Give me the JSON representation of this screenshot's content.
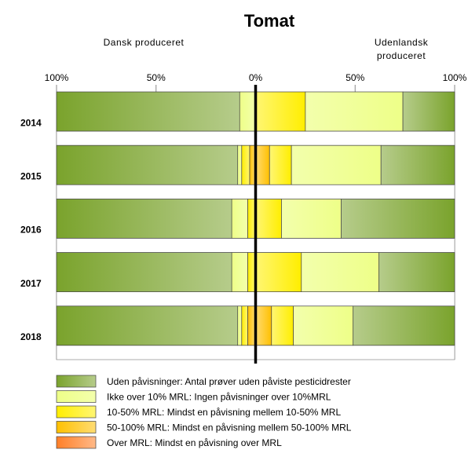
{
  "chart_data": {
    "type": "diverging-bar",
    "title": "Tomat",
    "left_label": "Dansk produceret",
    "right_label": "Udenlandsk produceret",
    "categories": [
      "2014",
      "2015",
      "2016",
      "2017",
      "2018"
    ],
    "xlim": [
      -100,
      100
    ],
    "xticks": [
      {
        "value": -100,
        "label": "100%"
      },
      {
        "value": -50,
        "label": "50%"
      },
      {
        "value": 0,
        "label": "0%"
      },
      {
        "value": 50,
        "label": "50%"
      },
      {
        "value": 100,
        "label": "100%"
      }
    ],
    "grid": true,
    "series": [
      {
        "name": "Uden påvisninger: Antal prøver uden påviste pesticidrester",
        "color": "#7aa32c",
        "left": [
          92,
          91,
          88,
          88,
          91
        ],
        "right": [
          26,
          37,
          57,
          38,
          51
        ]
      },
      {
        "name": "Ikke over 10% MRL: Ingen påvisninger over 10%MRL",
        "color": "#eeff88",
        "left": [
          8,
          2,
          8,
          8,
          2
        ],
        "right": [
          49,
          45,
          30,
          39,
          30
        ]
      },
      {
        "name": "10-50% MRL: Mindst en påvisning mellem 10-50% MRL",
        "color": "#ffee00",
        "left": [
          0,
          4,
          4,
          4,
          3
        ],
        "right": [
          25,
          11,
          13,
          23,
          11
        ]
      },
      {
        "name": "50-100% MRL: Mindst en påvisning mellem 50-100% MRL",
        "color": "#ffc000",
        "left": [
          0,
          3,
          0,
          0,
          4
        ],
        "right": [
          0,
          7,
          0,
          0,
          8
        ]
      },
      {
        "name": "Over MRL:  Mindst en påvisning over MRL",
        "color": "#ff7f27",
        "left": [
          0,
          0,
          0,
          0,
          0
        ],
        "right": [
          0,
          0,
          0,
          0,
          0
        ]
      }
    ]
  }
}
